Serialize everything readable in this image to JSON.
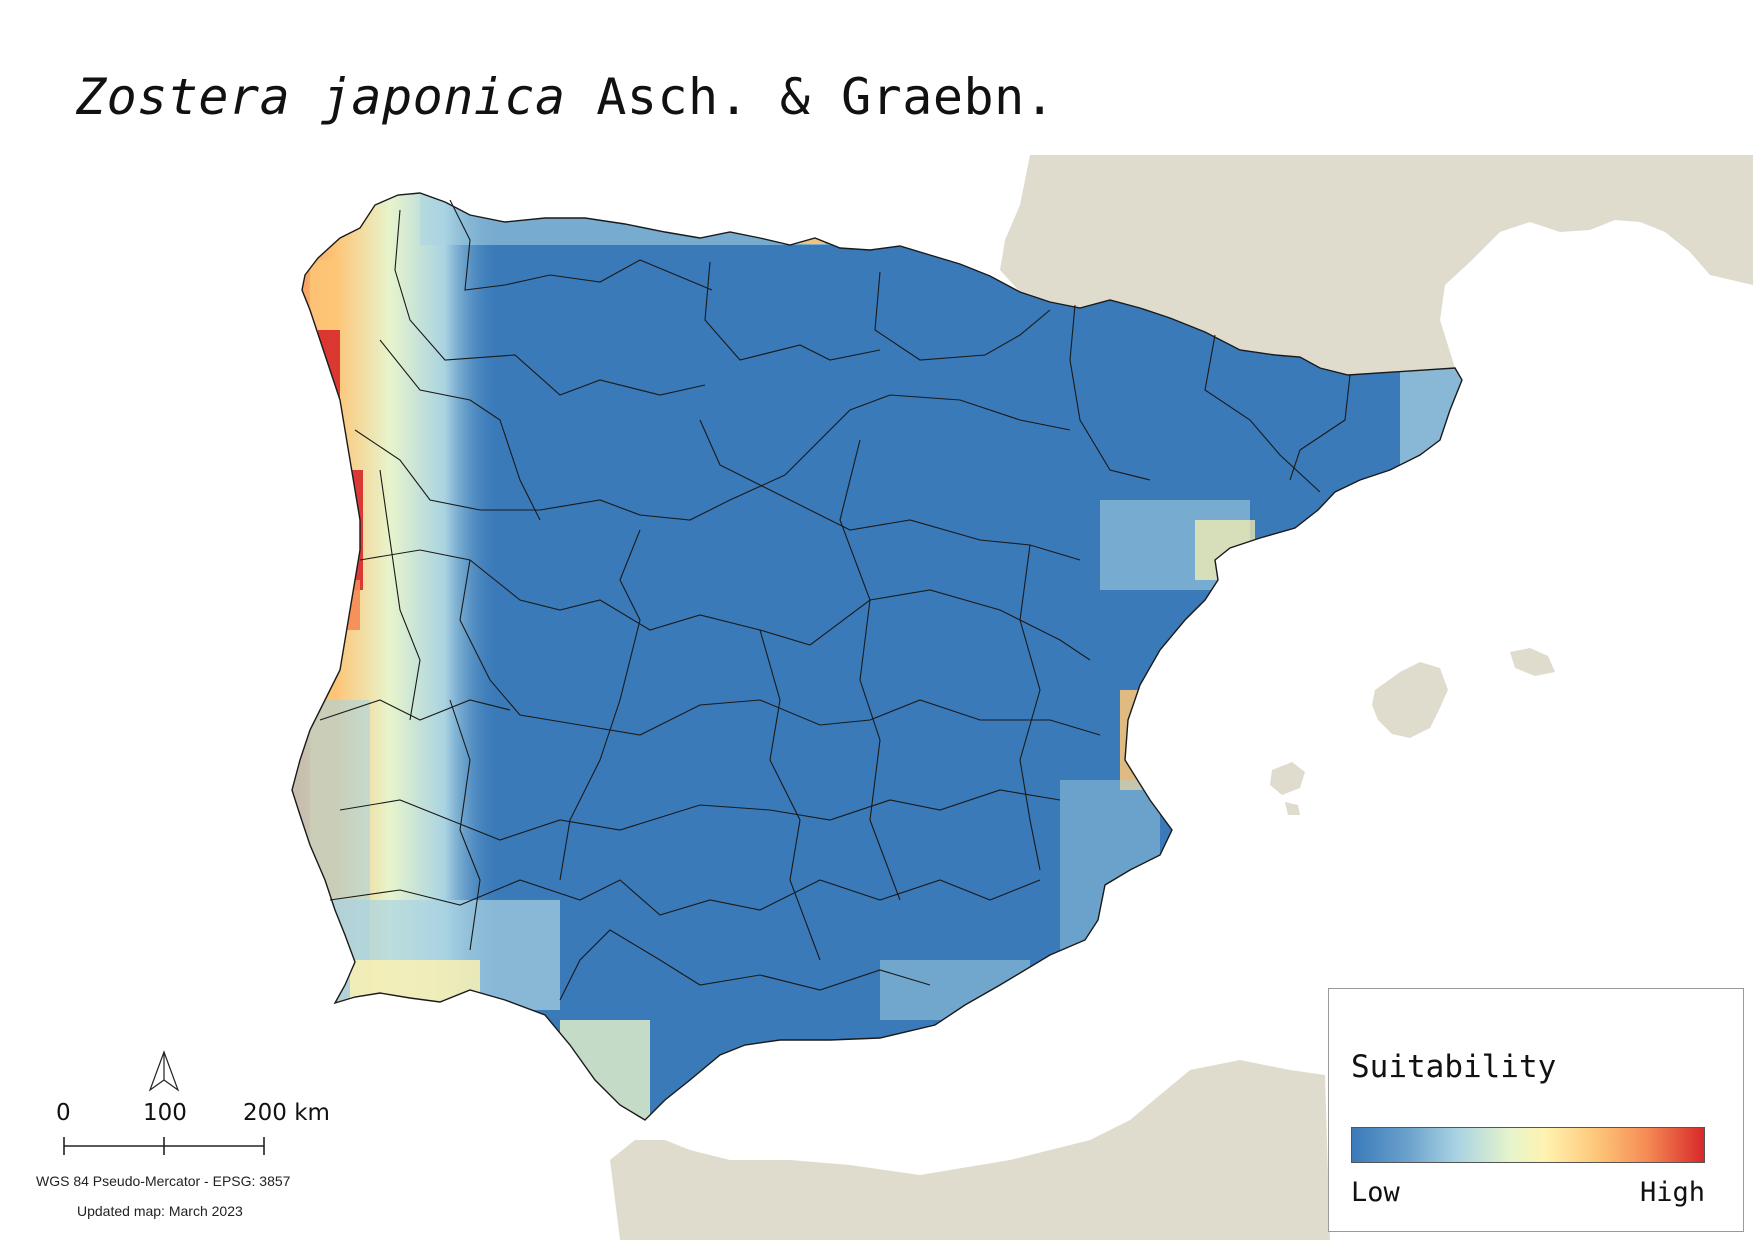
{
  "title": {
    "species": "Zostera japonica",
    "author": "Asch. & Graebn."
  },
  "legend": {
    "title": "Suitability",
    "low_label": "Low",
    "high_label": "High",
    "colors": [
      "#3a7ab9",
      "#6ba2cc",
      "#a9d3e2",
      "#e7f4cc",
      "#fff3b0",
      "#fdc577",
      "#f58a54",
      "#d7282a"
    ]
  },
  "scale_bar": {
    "tick_0": "0",
    "tick_1": "100",
    "tick_2": "200 km"
  },
  "north_arrow": "north-arrow-icon",
  "crs_text": "WGS 84 Pseudo-Mercator  - EPSG: 3857",
  "updated_text": "Updated map: March 2023",
  "colors": {
    "land_background": "#e0dccd",
    "sea": "#ffffff",
    "suitability_low": "#3a7ab9",
    "suitability_high": "#d7282a",
    "boundaries": "#1a1a1a"
  }
}
